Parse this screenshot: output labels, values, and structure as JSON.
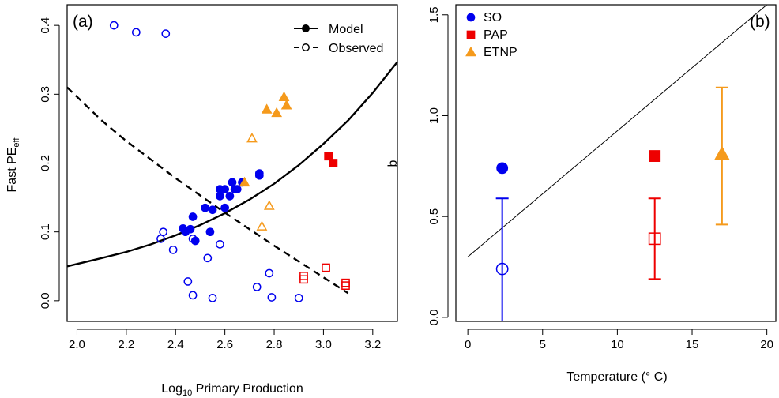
{
  "chart_data": [
    {
      "type": "scatter",
      "panel_label": "(a)",
      "xlabel_base": "Log",
      "xlabel_sub": "10",
      "xlabel_rest": " Primary Production",
      "ylabel_main": "Fast PE",
      "ylabel_sub": "eff",
      "xlim": [
        1.96,
        3.3
      ],
      "ylim": [
        -0.03,
        0.43
      ],
      "xticks": [
        2.0,
        2.2,
        2.4,
        2.6,
        2.8,
        3.0,
        3.2
      ],
      "yticks": [
        0.0,
        0.1,
        0.2,
        0.3,
        0.4
      ],
      "xtick_labels": [
        "2.0",
        "2.2",
        "2.4",
        "2.6",
        "2.8",
        "3.0",
        "3.2"
      ],
      "ytick_labels": [
        "0.0",
        "0.1",
        "0.2",
        "0.3",
        "0.4"
      ],
      "grid": false,
      "legend": {
        "position": "top-right",
        "entries": [
          {
            "label": "Model",
            "style": "solid-filled"
          },
          {
            "label": "Observed",
            "style": "dashed-open"
          }
        ]
      },
      "colors": {
        "SO": "#0000ee",
        "PAP": "#ee0000",
        "ETNP": "#f59a1c"
      },
      "model_curve": {
        "x": [
          1.96,
          2.1,
          2.2,
          2.3,
          2.4,
          2.5,
          2.6,
          2.7,
          2.8,
          2.9,
          3.0,
          3.1,
          3.2,
          3.3
        ],
        "y": [
          0.05,
          0.062,
          0.071,
          0.082,
          0.095,
          0.11,
          0.127,
          0.147,
          0.17,
          0.197,
          0.228,
          0.262,
          0.302,
          0.347
        ]
      },
      "observed_curve": {
        "x": [
          1.96,
          2.1,
          2.2,
          2.3,
          2.4,
          2.5,
          2.6,
          2.7,
          2.8,
          2.9,
          3.0,
          3.1
        ],
        "y": [
          0.31,
          0.262,
          0.232,
          0.205,
          0.178,
          0.153,
          0.128,
          0.104,
          0.08,
          0.057,
          0.034,
          0.011
        ]
      },
      "series": [
        {
          "region": "SO",
          "kind": "model",
          "marker": "filled-circle",
          "x": [
            2.43,
            2.46,
            2.47,
            2.44,
            2.48,
            2.52,
            2.55,
            2.54,
            2.58,
            2.6,
            2.58,
            2.62,
            2.63,
            2.64,
            2.65,
            2.67,
            2.74,
            2.74,
            2.6
          ],
          "y": [
            0.105,
            0.104,
            0.122,
            0.1,
            0.087,
            0.135,
            0.132,
            0.1,
            0.152,
            0.135,
            0.162,
            0.152,
            0.172,
            0.162,
            0.162,
            0.172,
            0.182,
            0.185,
            0.162
          ]
        },
        {
          "region": "SO",
          "kind": "observed",
          "marker": "open-circle",
          "x": [
            2.15,
            2.24,
            2.36,
            2.34,
            2.35,
            2.39,
            2.47,
            2.58,
            2.53,
            2.45,
            2.47,
            2.55,
            2.78,
            2.73,
            2.79,
            2.9
          ],
          "y": [
            0.4,
            0.39,
            0.388,
            0.09,
            0.1,
            0.074,
            0.09,
            0.082,
            0.062,
            0.028,
            0.008,
            0.004,
            0.04,
            0.02,
            0.005,
            0.004
          ]
        },
        {
          "region": "PAP",
          "kind": "model",
          "marker": "filled-square",
          "x": [
            3.02,
            3.04
          ],
          "y": [
            0.21,
            0.2
          ]
        },
        {
          "region": "PAP",
          "kind": "observed",
          "marker": "open-square",
          "x": [
            2.92,
            2.92,
            3.01,
            3.09,
            3.09
          ],
          "y": [
            0.036,
            0.031,
            0.048,
            0.026,
            0.022
          ]
        },
        {
          "region": "ETNP",
          "kind": "model",
          "marker": "filled-triangle",
          "x": [
            2.77,
            2.81,
            2.84,
            2.85,
            2.68
          ],
          "y": [
            0.278,
            0.273,
            0.296,
            0.284,
            0.172
          ]
        },
        {
          "region": "ETNP",
          "kind": "observed",
          "marker": "open-triangle",
          "x": [
            2.71,
            2.78,
            2.75
          ],
          "y": [
            0.236,
            0.138,
            0.108
          ]
        }
      ]
    },
    {
      "type": "scatter",
      "panel_label": "(b)",
      "xlabel": "Temperature (° C)",
      "ylabel": "b",
      "xlim": [
        -0.8,
        20.6
      ],
      "ylim": [
        -0.02,
        1.55
      ],
      "xticks": [
        0,
        5,
        10,
        15,
        20
      ],
      "yticks": [
        0.0,
        0.5,
        1.0,
        1.5
      ],
      "xtick_labels": [
        "0",
        "5",
        "10",
        "15",
        "20"
      ],
      "ytick_labels": [
        "0.0",
        "0.5",
        "1.0",
        "1.5"
      ],
      "grid": false,
      "legend": {
        "position": "top-left",
        "entries": [
          {
            "label": "SO",
            "marker": "filled-circle",
            "color": "#0000ee"
          },
          {
            "label": "PAP",
            "marker": "filled-square",
            "color": "#ee0000"
          },
          {
            "label": "ETNP",
            "marker": "filled-triangle",
            "color": "#f59a1c"
          }
        ]
      },
      "line": {
        "x": [
          0,
          20
        ],
        "y": [
          0.3,
          1.55
        ]
      },
      "points": [
        {
          "region": "SO",
          "x": 2.3,
          "model_b": 0.74,
          "observed_b": 0.24,
          "err_low": -0.02,
          "err_high": 0.59,
          "color": "#0000ee"
        },
        {
          "region": "PAP",
          "x": 12.5,
          "model_b": 0.8,
          "observed_b": 0.39,
          "err_low": 0.19,
          "err_high": 0.59,
          "color": "#ee0000"
        },
        {
          "region": "ETNP",
          "x": 17.0,
          "model_b": 0.81,
          "observed_b": 0.81,
          "err_low": 0.46,
          "err_high": 1.14,
          "color": "#f59a1c"
        }
      ]
    }
  ]
}
